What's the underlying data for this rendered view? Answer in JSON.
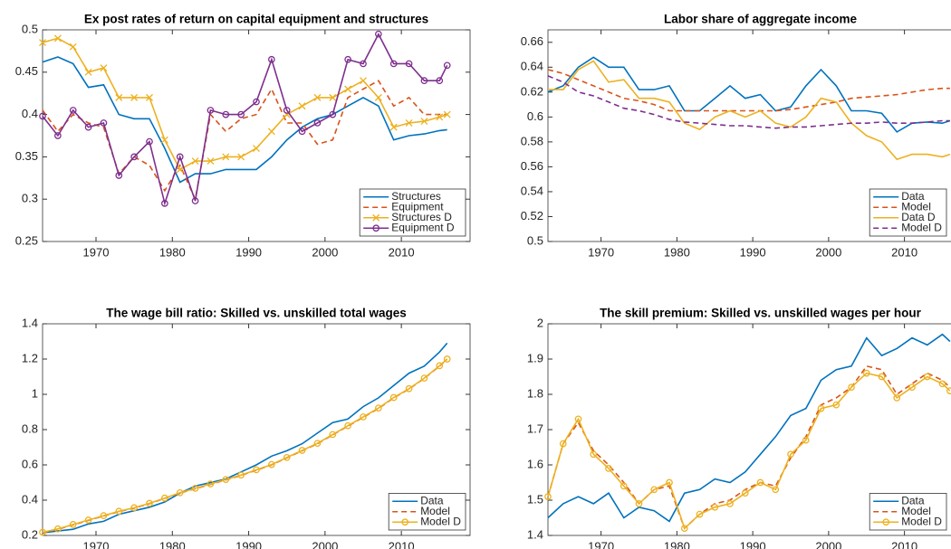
{
  "chart_data": [
    {
      "type": "line",
      "title": "Ex post rates of return on capital equipment and structures",
      "x": [
        1963,
        1965,
        1967,
        1969,
        1971,
        1973,
        1975,
        1977,
        1979,
        1981,
        1983,
        1985,
        1987,
        1989,
        1991,
        1993,
        1995,
        1997,
        1999,
        2001,
        2003,
        2005,
        2007,
        2009,
        2011,
        2013,
        2015,
        2016
      ],
      "xlim": [
        1963,
        2019
      ],
      "xticks": [
        1970,
        1980,
        1990,
        2000,
        2010
      ],
      "ylim": [
        0.25,
        0.5
      ],
      "yticks": [
        0.25,
        0.3,
        0.35,
        0.4,
        0.45,
        0.5
      ],
      "legend": "lower right",
      "series": [
        {
          "name": "Structures",
          "color": "#0072bd",
          "linestyle": "solid",
          "marker": "none",
          "values": [
            0.462,
            0.468,
            0.46,
            0.432,
            0.435,
            0.4,
            0.395,
            0.395,
            0.36,
            0.32,
            0.33,
            0.33,
            0.335,
            0.335,
            0.335,
            0.35,
            0.37,
            0.385,
            0.395,
            0.4,
            0.41,
            0.42,
            0.41,
            0.37,
            0.375,
            0.377,
            0.381,
            0.382
          ]
        },
        {
          "name": "Equipment",
          "color": "#d95319",
          "linestyle": "dashed",
          "marker": "none",
          "values": [
            0.405,
            0.38,
            0.4,
            0.39,
            0.385,
            0.33,
            0.35,
            0.34,
            0.31,
            0.34,
            0.3,
            0.4,
            0.38,
            0.395,
            0.4,
            0.43,
            0.39,
            0.39,
            0.365,
            0.37,
            0.42,
            0.43,
            0.44,
            0.41,
            0.42,
            0.4,
            0.4,
            0.4
          ]
        },
        {
          "name": "Structures D",
          "color": "#edb120",
          "linestyle": "solid",
          "marker": "x",
          "values": [
            0.485,
            0.49,
            0.48,
            0.45,
            0.455,
            0.42,
            0.42,
            0.42,
            0.37,
            0.335,
            0.345,
            0.345,
            0.35,
            0.35,
            0.36,
            0.38,
            0.4,
            0.41,
            0.42,
            0.42,
            0.43,
            0.44,
            0.42,
            0.385,
            0.39,
            0.392,
            0.397,
            0.4
          ]
        },
        {
          "name": "Equipment D",
          "color": "#7e2f8e",
          "linestyle": "solid",
          "marker": "o",
          "values": [
            0.398,
            0.375,
            0.405,
            0.385,
            0.39,
            0.328,
            0.35,
            0.368,
            0.295,
            0.35,
            0.298,
            0.405,
            0.4,
            0.4,
            0.415,
            0.465,
            0.405,
            0.38,
            0.39,
            0.4,
            0.465,
            0.46,
            0.495,
            0.46,
            0.46,
            0.44,
            0.44,
            0.458
          ]
        }
      ]
    },
    {
      "type": "line",
      "title": "Labor share of aggregate income",
      "x": [
        1963,
        1965,
        1967,
        1969,
        1971,
        1973,
        1975,
        1977,
        1979,
        1981,
        1983,
        1985,
        1987,
        1989,
        1991,
        1993,
        1995,
        1997,
        1999,
        2001,
        2003,
        2005,
        2007,
        2009,
        2011,
        2013,
        2015,
        2016
      ],
      "xlim": [
        1963,
        2019
      ],
      "xticks": [
        1970,
        1980,
        1990,
        2000,
        2010
      ],
      "ylim": [
        0.5,
        0.67
      ],
      "yticks": [
        0.5,
        0.52,
        0.54,
        0.56,
        0.58,
        0.6,
        0.62,
        0.64,
        0.66
      ],
      "legend": "lower right",
      "series": [
        {
          "name": "Data",
          "color": "#0072bd",
          "linestyle": "solid",
          "marker": "none",
          "values": [
            0.62,
            0.625,
            0.64,
            0.648,
            0.64,
            0.64,
            0.622,
            0.622,
            0.625,
            0.605,
            0.605,
            0.615,
            0.625,
            0.615,
            0.618,
            0.605,
            0.608,
            0.625,
            0.638,
            0.625,
            0.605,
            0.605,
            0.603,
            0.588,
            0.595,
            0.596,
            0.595,
            0.597
          ]
        },
        {
          "name": "Model",
          "color": "#d95319",
          "linestyle": "dashed",
          "marker": "none",
          "values": [
            0.638,
            0.635,
            0.63,
            0.625,
            0.62,
            0.615,
            0.613,
            0.61,
            0.605,
            0.605,
            0.605,
            0.605,
            0.605,
            0.605,
            0.605,
            0.605,
            0.606,
            0.608,
            0.61,
            0.612,
            0.615,
            0.616,
            0.617,
            0.618,
            0.62,
            0.622,
            0.623,
            0.623
          ]
        },
        {
          "name": "Data D",
          "color": "#edb120",
          "linestyle": "solid",
          "marker": "none",
          "values": [
            0.622,
            0.622,
            0.638,
            0.645,
            0.628,
            0.63,
            0.615,
            0.615,
            0.612,
            0.595,
            0.59,
            0.6,
            0.605,
            0.6,
            0.605,
            0.595,
            0.592,
            0.6,
            0.615,
            0.612,
            0.595,
            0.585,
            0.58,
            0.566,
            0.57,
            0.57,
            0.568,
            0.57
          ]
        },
        {
          "name": "Model D",
          "color": "#7e2f8e",
          "linestyle": "dashed",
          "marker": "none",
          "values": [
            0.633,
            0.628,
            0.62,
            0.617,
            0.612,
            0.607,
            0.605,
            0.602,
            0.598,
            0.596,
            0.595,
            0.594,
            0.593,
            0.593,
            0.592,
            0.591,
            0.592,
            0.592,
            0.593,
            0.594,
            0.595,
            0.595,
            0.596,
            0.595,
            0.595,
            0.596,
            0.597,
            0.597
          ]
        }
      ]
    },
    {
      "type": "line",
      "title": "The wage bill ratio: Skilled vs. unskilled total wages",
      "x": [
        1963,
        1965,
        1967,
        1969,
        1971,
        1973,
        1975,
        1977,
        1979,
        1981,
        1983,
        1985,
        1987,
        1989,
        1991,
        1993,
        1995,
        1997,
        1999,
        2001,
        2003,
        2005,
        2007,
        2009,
        2011,
        2013,
        2015,
        2016
      ],
      "xlim": [
        1963,
        2019
      ],
      "xticks": [
        1970,
        1980,
        1990,
        2000,
        2010
      ],
      "ylim": [
        0.2,
        1.4
      ],
      "yticks": [
        0.2,
        0.4,
        0.6,
        0.8,
        1,
        1.2,
        1.4
      ],
      "legend": "lower right",
      "series": [
        {
          "name": "Data",
          "color": "#0072bd",
          "linestyle": "solid",
          "marker": "none",
          "values": [
            0.215,
            0.225,
            0.235,
            0.265,
            0.28,
            0.32,
            0.34,
            0.36,
            0.39,
            0.44,
            0.48,
            0.5,
            0.52,
            0.56,
            0.6,
            0.65,
            0.68,
            0.72,
            0.78,
            0.84,
            0.86,
            0.93,
            0.98,
            1.05,
            1.12,
            1.16,
            1.24,
            1.29
          ]
        },
        {
          "name": "Model",
          "color": "#d95319",
          "linestyle": "dashed",
          "marker": "none",
          "values": [
            0.215,
            0.235,
            0.26,
            0.285,
            0.31,
            0.335,
            0.355,
            0.38,
            0.41,
            0.44,
            0.465,
            0.49,
            0.515,
            0.54,
            0.57,
            0.6,
            0.64,
            0.68,
            0.72,
            0.77,
            0.82,
            0.87,
            0.92,
            0.98,
            1.03,
            1.09,
            1.16,
            1.2
          ]
        },
        {
          "name": "Model D",
          "color": "#edb120",
          "linestyle": "solid",
          "marker": "o",
          "values": [
            0.218,
            0.237,
            0.262,
            0.287,
            0.312,
            0.337,
            0.357,
            0.382,
            0.412,
            0.442,
            0.467,
            0.492,
            0.517,
            0.542,
            0.572,
            0.602,
            0.642,
            0.682,
            0.722,
            0.772,
            0.822,
            0.872,
            0.922,
            0.982,
            1.032,
            1.092,
            1.162,
            1.2
          ]
        }
      ]
    },
    {
      "type": "line",
      "title": "The skill premium: Skilled vs. unskilled wages per hour",
      "x": [
        1963,
        1965,
        1967,
        1969,
        1971,
        1973,
        1975,
        1977,
        1979,
        1981,
        1983,
        1985,
        1987,
        1989,
        1991,
        1993,
        1995,
        1997,
        1999,
        2001,
        2003,
        2005,
        2007,
        2009,
        2011,
        2013,
        2015,
        2016
      ],
      "xlim": [
        1963,
        2019
      ],
      "xticks": [
        1970,
        1980,
        1990,
        2000,
        2010
      ],
      "ylim": [
        1.4,
        2
      ],
      "yticks": [
        1.4,
        1.5,
        1.6,
        1.7,
        1.8,
        1.9,
        2
      ],
      "legend": "lower right",
      "series": [
        {
          "name": "Data",
          "color": "#0072bd",
          "linestyle": "solid",
          "marker": "none",
          "values": [
            1.45,
            1.49,
            1.51,
            1.49,
            1.52,
            1.45,
            1.48,
            1.47,
            1.44,
            1.52,
            1.53,
            1.56,
            1.55,
            1.58,
            1.63,
            1.68,
            1.74,
            1.76,
            1.84,
            1.87,
            1.88,
            1.96,
            1.91,
            1.93,
            1.96,
            1.94,
            1.97,
            1.95
          ]
        },
        {
          "name": "Model",
          "color": "#d95319",
          "linestyle": "dashed",
          "marker": "none",
          "values": [
            1.51,
            1.66,
            1.72,
            1.64,
            1.6,
            1.55,
            1.49,
            1.53,
            1.54,
            1.42,
            1.46,
            1.49,
            1.5,
            1.53,
            1.55,
            1.54,
            1.62,
            1.68,
            1.77,
            1.79,
            1.82,
            1.88,
            1.87,
            1.8,
            1.83,
            1.86,
            1.84,
            1.82
          ]
        },
        {
          "name": "Model D",
          "color": "#edb120",
          "linestyle": "solid",
          "marker": "o",
          "values": [
            1.51,
            1.66,
            1.73,
            1.63,
            1.59,
            1.54,
            1.49,
            1.53,
            1.55,
            1.42,
            1.46,
            1.48,
            1.49,
            1.52,
            1.55,
            1.53,
            1.63,
            1.67,
            1.76,
            1.77,
            1.82,
            1.86,
            1.85,
            1.79,
            1.82,
            1.85,
            1.83,
            1.81
          ]
        }
      ]
    }
  ]
}
